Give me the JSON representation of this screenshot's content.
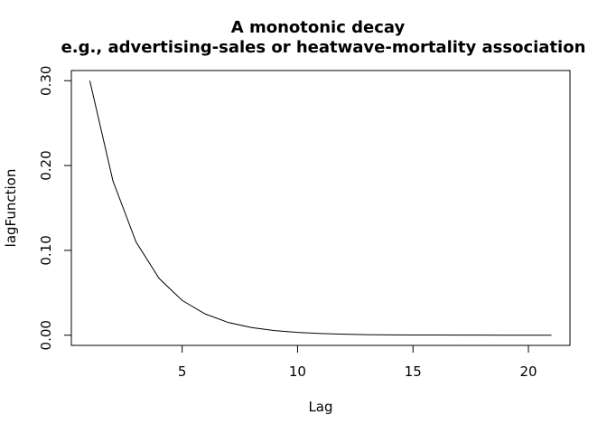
{
  "chart_data": {
    "type": "line",
    "title": "A monotonic decay",
    "subtitle": "e.g., advertising-sales or heatwave-mortality association",
    "xlabel": "Lag",
    "ylabel": "lagFunction",
    "xlim": [
      0.2,
      21.8
    ],
    "ylim": [
      -0.012,
      0.312
    ],
    "x_ticks": [
      5,
      10,
      15,
      20
    ],
    "x_tick_labels": [
      "5",
      "10",
      "15",
      "20"
    ],
    "y_ticks": [
      0.0,
      0.1,
      0.2,
      0.3
    ],
    "y_tick_labels": [
      "0.00",
      "0.10",
      "0.20",
      "0.30"
    ],
    "grid": false,
    "legend": "none",
    "line_color": "#000000",
    "series": [
      {
        "x": [
          1,
          2,
          3,
          4,
          5,
          6,
          7,
          8,
          9,
          10,
          11,
          12,
          13,
          14,
          15,
          16,
          17,
          18,
          19,
          20,
          21
        ],
        "values": [
          0.3,
          0.182,
          0.11,
          0.067,
          0.041,
          0.025,
          0.015,
          0.009,
          0.0055,
          0.0033,
          0.002,
          0.0012,
          0.0007,
          0.0004,
          0.0003,
          0.0002,
          0.0001,
          0.0001,
          0.0,
          0.0,
          0.0
        ]
      }
    ]
  }
}
